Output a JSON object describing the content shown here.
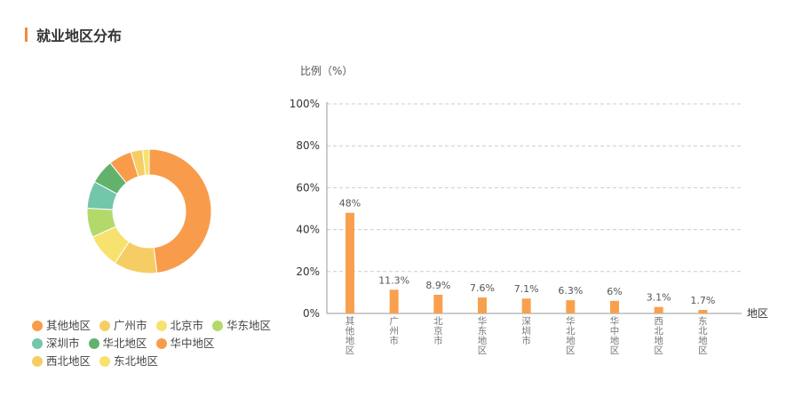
{
  "section": {
    "title": "就业地区分布"
  },
  "colors": {
    "accent": "#f08b3f",
    "bar": "#f9a04e",
    "grid": "#cccccc",
    "axis": "#999999"
  },
  "donut": {
    "colors": [
      "#f89c4b",
      "#f6cd65",
      "#f7e26e",
      "#b3d96b",
      "#72c6a9",
      "#62b26d",
      "#f89c4b",
      "#f6cd65",
      "#f7e26e"
    ]
  },
  "legend": [
    {
      "label": "其他地区",
      "color": "#f89c4b"
    },
    {
      "label": "广州市",
      "color": "#f6cd65"
    },
    {
      "label": "北京市",
      "color": "#f7e26e"
    },
    {
      "label": "华东地区",
      "color": "#b3d96b"
    },
    {
      "label": "深圳市",
      "color": "#72c6a9"
    },
    {
      "label": "华北地区",
      "color": "#62b26d"
    },
    {
      "label": "华中地区",
      "color": "#f89c4b"
    },
    {
      "label": "西北地区",
      "color": "#f6cd65"
    },
    {
      "label": "东北地区",
      "color": "#f7e26e"
    }
  ],
  "chart_data": [
    {
      "type": "pie",
      "categories": [
        "其他地区",
        "广州市",
        "北京市",
        "华东地区",
        "深圳市",
        "华北地区",
        "华中地区",
        "西北地区",
        "东北地区"
      ],
      "values": [
        48,
        11.3,
        8.9,
        7.6,
        7.1,
        6.3,
        6,
        3.1,
        1.7
      ]
    },
    {
      "type": "bar",
      "categories": [
        "其他地区",
        "广州市",
        "北京市",
        "华东地区",
        "深圳市",
        "华北地区",
        "华中地区",
        "西北地区",
        "东北地区"
      ],
      "values": [
        48,
        11.3,
        8.9,
        7.6,
        7.1,
        6.3,
        6,
        3.1,
        1.7
      ],
      "data_labels": [
        "48%",
        "11.3%",
        "8.9%",
        "7.6%",
        "7.1%",
        "6.3%",
        "6%",
        "3.1%",
        "1.7%"
      ],
      "xlabel": "地区",
      "ylabel": "比例（%）",
      "ylim": [
        0,
        100
      ],
      "yticks": [
        "0%",
        "20%",
        "40%",
        "60%",
        "80%",
        "100%"
      ],
      "grid": true
    }
  ]
}
